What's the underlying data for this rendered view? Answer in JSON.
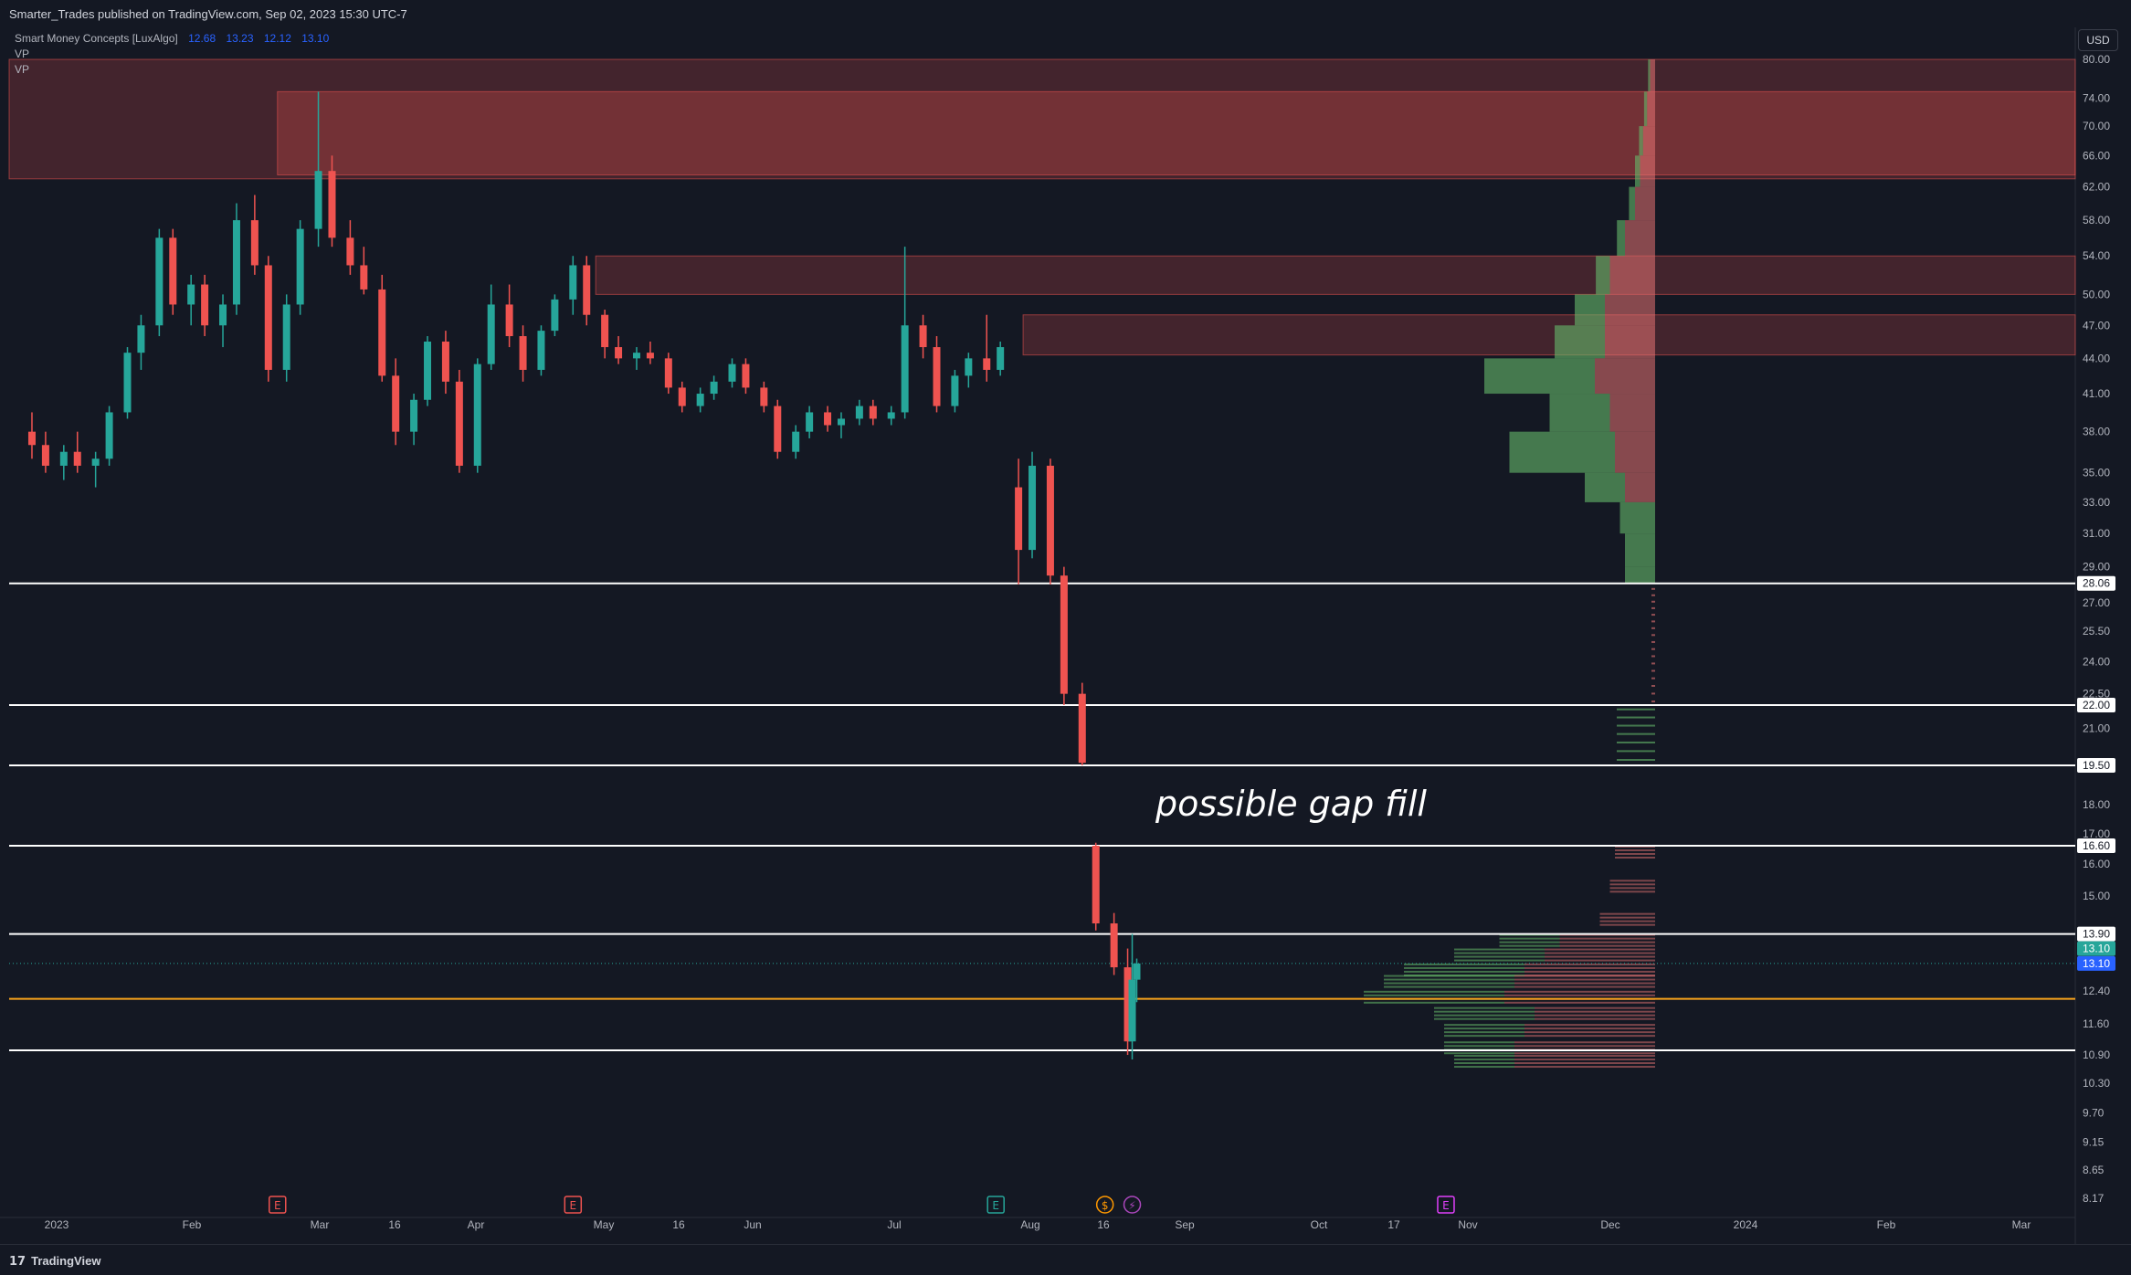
{
  "header": {
    "published_by": "Smarter_Trades published on TradingView.com, Sep 02, 2023 15:30 UTC-7"
  },
  "legend": {
    "indicator_name": "Smart Money Concepts [LuxAlgo]",
    "values": [
      "12.68",
      "13.23",
      "12.12",
      "13.10"
    ],
    "vp_label_1": "VP",
    "vp_label_2": "VP"
  },
  "currency_button": "USD",
  "footer": {
    "brand": "TradingView",
    "logo_glyph": "17"
  },
  "annotation": "possible gap fill",
  "colors": {
    "background": "#141823",
    "up": "#26a69a",
    "down": "#ef5350",
    "supply_zone": "#ef5350",
    "orange_line": "#f7a21b",
    "last_price": "#2962ff"
  },
  "chart_data": {
    "type": "candlestick",
    "title": "",
    "y_axis": {
      "ticks": [
        "80.00",
        "74.00",
        "70.00",
        "66.00",
        "62.00",
        "58.00",
        "54.00",
        "50.00",
        "47.00",
        "44.00",
        "41.00",
        "38.00",
        "35.00",
        "33.00",
        "31.00",
        "29.00",
        "27.00",
        "25.50",
        "24.00",
        "22.50",
        "21.00",
        "18.00",
        "17.00",
        "16.00",
        "15.00",
        "12.40",
        "11.60",
        "10.90",
        "10.30",
        "9.70",
        "9.15",
        "8.65",
        "8.17"
      ],
      "scale": "log",
      "range": [
        8.17,
        80.0
      ]
    },
    "x_axis": {
      "ticks": [
        "2023",
        "Feb",
        "Mar",
        "16",
        "Apr",
        "May",
        "16",
        "Jun",
        "Jul",
        "Aug",
        "16",
        "Sep",
        "Oct",
        "17",
        "Nov",
        "Dec",
        "2024",
        "Feb",
        "Mar"
      ]
    },
    "price_labels": [
      {
        "value": "28.06",
        "style": "white"
      },
      {
        "value": "22.00",
        "style": "white"
      },
      {
        "value": "19.50",
        "style": "white"
      },
      {
        "value": "16.60",
        "style": "white"
      },
      {
        "value": "13.90",
        "style": "white"
      },
      {
        "value": "13.10",
        "style": "green"
      },
      {
        "value": "13.10",
        "style": "blue"
      }
    ],
    "horizontal_lines": [
      28.06,
      22.0,
      19.5,
      16.6,
      13.9,
      11.0
    ],
    "orange_line": 12.2,
    "last_price": 13.1,
    "supply_zones": [
      {
        "from": "2023-01-01",
        "low": 63.0,
        "high": 80.0
      },
      {
        "from": "2023-02-25",
        "low": 63.5,
        "high": 75.0
      },
      {
        "from": "2023-05-06",
        "low": 50.0,
        "high": 54.0
      },
      {
        "from": "2023-08-08",
        "low": 44.3,
        "high": 48.0
      }
    ],
    "event_markers": [
      {
        "date": "2023-02-25",
        "letter": "E",
        "color": "#ef5350"
      },
      {
        "date": "2023-05-01",
        "letter": "E",
        "color": "#ef5350"
      },
      {
        "date": "2023-08-02",
        "letter": "E",
        "color": "#26a69a"
      },
      {
        "date": "2023-08-26",
        "letter": "$",
        "color": "#ff9800"
      },
      {
        "date": "2023-09-01",
        "letter": "⚡",
        "color": "#ab47bc"
      },
      {
        "date": "2023-11-09",
        "letter": "E",
        "color": "#e040fb"
      }
    ],
    "candles": [
      {
        "t": "2023-01-02",
        "o": 38,
        "h": 39.5,
        "l": 36,
        "c": 37
      },
      {
        "t": "2023-01-05",
        "o": 37,
        "h": 38,
        "l": 35,
        "c": 35.5
      },
      {
        "t": "2023-01-09",
        "o": 35.5,
        "h": 37,
        "l": 34.5,
        "c": 36.5
      },
      {
        "t": "2023-01-12",
        "o": 36.5,
        "h": 38,
        "l": 35,
        "c": 35.5
      },
      {
        "t": "2023-01-16",
        "o": 35.5,
        "h": 36.5,
        "l": 34,
        "c": 36
      },
      {
        "t": "2023-01-19",
        "o": 36,
        "h": 40,
        "l": 35.5,
        "c": 39.5
      },
      {
        "t": "2023-01-23",
        "o": 39.5,
        "h": 45,
        "l": 39,
        "c": 44.5
      },
      {
        "t": "2023-01-26",
        "o": 44.5,
        "h": 48,
        "l": 43,
        "c": 47
      },
      {
        "t": "2023-01-30",
        "o": 47,
        "h": 57,
        "l": 46,
        "c": 56
      },
      {
        "t": "2023-02-02",
        "o": 56,
        "h": 57,
        "l": 48,
        "c": 49
      },
      {
        "t": "2023-02-06",
        "o": 49,
        "h": 52,
        "l": 47,
        "c": 51
      },
      {
        "t": "2023-02-09",
        "o": 51,
        "h": 52,
        "l": 46,
        "c": 47
      },
      {
        "t": "2023-02-13",
        "o": 47,
        "h": 50,
        "l": 45,
        "c": 49
      },
      {
        "t": "2023-02-16",
        "o": 49,
        "h": 60,
        "l": 48,
        "c": 58
      },
      {
        "t": "2023-02-20",
        "o": 58,
        "h": 61,
        "l": 52,
        "c": 53
      },
      {
        "t": "2023-02-23",
        "o": 53,
        "h": 54,
        "l": 42,
        "c": 43
      },
      {
        "t": "2023-02-27",
        "o": 43,
        "h": 50,
        "l": 42,
        "c": 49
      },
      {
        "t": "2023-03-02",
        "o": 49,
        "h": 58,
        "l": 48,
        "c": 57
      },
      {
        "t": "2023-03-06",
        "o": 57,
        "h": 75,
        "l": 55,
        "c": 64
      },
      {
        "t": "2023-03-09",
        "o": 64,
        "h": 66,
        "l": 55,
        "c": 56
      },
      {
        "t": "2023-03-13",
        "o": 56,
        "h": 58,
        "l": 52,
        "c": 53
      },
      {
        "t": "2023-03-16",
        "o": 53,
        "h": 55,
        "l": 50,
        "c": 50.5
      },
      {
        "t": "2023-03-20",
        "o": 50.5,
        "h": 52,
        "l": 42,
        "c": 42.5
      },
      {
        "t": "2023-03-23",
        "o": 42.5,
        "h": 44,
        "l": 37,
        "c": 38
      },
      {
        "t": "2023-03-27",
        "o": 38,
        "h": 41,
        "l": 37,
        "c": 40.5
      },
      {
        "t": "2023-03-30",
        "o": 40.5,
        "h": 46,
        "l": 40,
        "c": 45.5
      },
      {
        "t": "2023-04-03",
        "o": 45.5,
        "h": 46.5,
        "l": 41,
        "c": 42
      },
      {
        "t": "2023-04-06",
        "o": 42,
        "h": 43,
        "l": 35,
        "c": 35.5
      },
      {
        "t": "2023-04-10",
        "o": 35.5,
        "h": 44,
        "l": 35,
        "c": 43.5
      },
      {
        "t": "2023-04-13",
        "o": 43.5,
        "h": 51,
        "l": 43,
        "c": 49
      },
      {
        "t": "2023-04-17",
        "o": 49,
        "h": 51,
        "l": 45,
        "c": 46
      },
      {
        "t": "2023-04-20",
        "o": 46,
        "h": 47,
        "l": 42,
        "c": 43
      },
      {
        "t": "2023-04-24",
        "o": 43,
        "h": 47,
        "l": 42.5,
        "c": 46.5
      },
      {
        "t": "2023-04-27",
        "o": 46.5,
        "h": 50,
        "l": 46,
        "c": 49.5
      },
      {
        "t": "2023-05-01",
        "o": 49.5,
        "h": 54,
        "l": 48,
        "c": 53
      },
      {
        "t": "2023-05-04",
        "o": 53,
        "h": 54,
        "l": 47,
        "c": 48
      },
      {
        "t": "2023-05-08",
        "o": 48,
        "h": 48.5,
        "l": 44,
        "c": 45
      },
      {
        "t": "2023-05-11",
        "o": 45,
        "h": 46,
        "l": 43.5,
        "c": 44
      },
      {
        "t": "2023-05-15",
        "o": 44,
        "h": 45,
        "l": 43,
        "c": 44.5
      },
      {
        "t": "2023-05-18",
        "o": 44.5,
        "h": 45.5,
        "l": 43.5,
        "c": 44
      },
      {
        "t": "2023-05-22",
        "o": 44,
        "h": 44.5,
        "l": 41,
        "c": 41.5
      },
      {
        "t": "2023-05-25",
        "o": 41.5,
        "h": 42,
        "l": 39.5,
        "c": 40
      },
      {
        "t": "2023-05-29",
        "o": 40,
        "h": 41.5,
        "l": 39.5,
        "c": 41
      },
      {
        "t": "2023-06-01",
        "o": 41,
        "h": 42.5,
        "l": 40.5,
        "c": 42
      },
      {
        "t": "2023-06-05",
        "o": 42,
        "h": 44,
        "l": 41.5,
        "c": 43.5
      },
      {
        "t": "2023-06-08",
        "o": 43.5,
        "h": 44,
        "l": 41,
        "c": 41.5
      },
      {
        "t": "2023-06-12",
        "o": 41.5,
        "h": 42,
        "l": 39.5,
        "c": 40
      },
      {
        "t": "2023-06-15",
        "o": 40,
        "h": 40.5,
        "l": 36,
        "c": 36.5
      },
      {
        "t": "2023-06-19",
        "o": 36.5,
        "h": 38.5,
        "l": 36,
        "c": 38
      },
      {
        "t": "2023-06-22",
        "o": 38,
        "h": 40,
        "l": 37.5,
        "c": 39.5
      },
      {
        "t": "2023-06-26",
        "o": 39.5,
        "h": 40,
        "l": 38,
        "c": 38.5
      },
      {
        "t": "2023-06-29",
        "o": 38.5,
        "h": 39.5,
        "l": 37.5,
        "c": 39
      },
      {
        "t": "2023-07-03",
        "o": 39,
        "h": 40.5,
        "l": 38.5,
        "c": 40
      },
      {
        "t": "2023-07-06",
        "o": 40,
        "h": 40.5,
        "l": 38.5,
        "c": 39
      },
      {
        "t": "2023-07-10",
        "o": 39,
        "h": 40,
        "l": 38.5,
        "c": 39.5
      },
      {
        "t": "2023-07-13",
        "o": 39.5,
        "h": 55,
        "l": 39,
        "c": 47
      },
      {
        "t": "2023-07-17",
        "o": 47,
        "h": 48,
        "l": 44,
        "c": 45
      },
      {
        "t": "2023-07-20",
        "o": 45,
        "h": 46,
        "l": 39.5,
        "c": 40
      },
      {
        "t": "2023-07-24",
        "o": 40,
        "h": 43,
        "l": 39.5,
        "c": 42.5
      },
      {
        "t": "2023-07-27",
        "o": 42.5,
        "h": 44.5,
        "l": 41.5,
        "c": 44
      },
      {
        "t": "2023-07-31",
        "o": 44,
        "h": 48,
        "l": 42,
        "c": 43
      },
      {
        "t": "2023-08-03",
        "o": 43,
        "h": 45.5,
        "l": 42.5,
        "c": 45
      },
      {
        "t": "2023-08-07",
        "o": 34,
        "h": 36,
        "l": 28,
        "c": 30
      },
      {
        "t": "2023-08-10",
        "o": 30,
        "h": 36.5,
        "l": 29.5,
        "c": 35.5
      },
      {
        "t": "2023-08-14",
        "o": 35.5,
        "h": 36,
        "l": 28,
        "c": 28.5
      },
      {
        "t": "2023-08-17",
        "o": 28.5,
        "h": 29,
        "l": 22,
        "c": 22.5
      },
      {
        "t": "2023-08-21",
        "o": 22.5,
        "h": 23,
        "l": 19.5,
        "c": 19.6
      },
      {
        "t": "2023-08-24",
        "o": 16.6,
        "h": 16.7,
        "l": 14,
        "c": 14.2
      },
      {
        "t": "2023-08-28",
        "o": 14.2,
        "h": 14.5,
        "l": 12.8,
        "c": 13
      },
      {
        "t": "2023-08-31",
        "o": 13,
        "h": 13.5,
        "l": 10.9,
        "c": 11.2
      },
      {
        "t": "2023-09-01",
        "o": 11.2,
        "h": 13.9,
        "l": 10.8,
        "c": 12.68
      },
      {
        "t": "2023-09-02",
        "o": 12.68,
        "h": 13.23,
        "l": 12.12,
        "c": 13.1
      }
    ],
    "volume_profile": {
      "side": "right",
      "rows_top": [
        80,
        75,
        70,
        66,
        62,
        58,
        54,
        50,
        47,
        44,
        41,
        38,
        35,
        33,
        31,
        29
      ],
      "rows_top_up": [
        2,
        3,
        4,
        5,
        6,
        8,
        14,
        30,
        50,
        110,
        60,
        105,
        40,
        35,
        30,
        30
      ],
      "rows_top_down": [
        5,
        8,
        12,
        15,
        20,
        30,
        45,
        50,
        50,
        60,
        45,
        40,
        30,
        0,
        0,
        0
      ],
      "rows_bottom": [
        16.6,
        15.5,
        14.5,
        13.9,
        13.5,
        13.1,
        12.8,
        12.4,
        12.0,
        11.6,
        11.2,
        10.9
      ],
      "rows_bottom_up": [
        0,
        0,
        0,
        60,
        90,
        120,
        130,
        140,
        100,
        80,
        70,
        60
      ],
      "rows_bottom_down": [
        40,
        45,
        55,
        95,
        110,
        130,
        140,
        150,
        120,
        130,
        140,
        140
      ]
    }
  }
}
